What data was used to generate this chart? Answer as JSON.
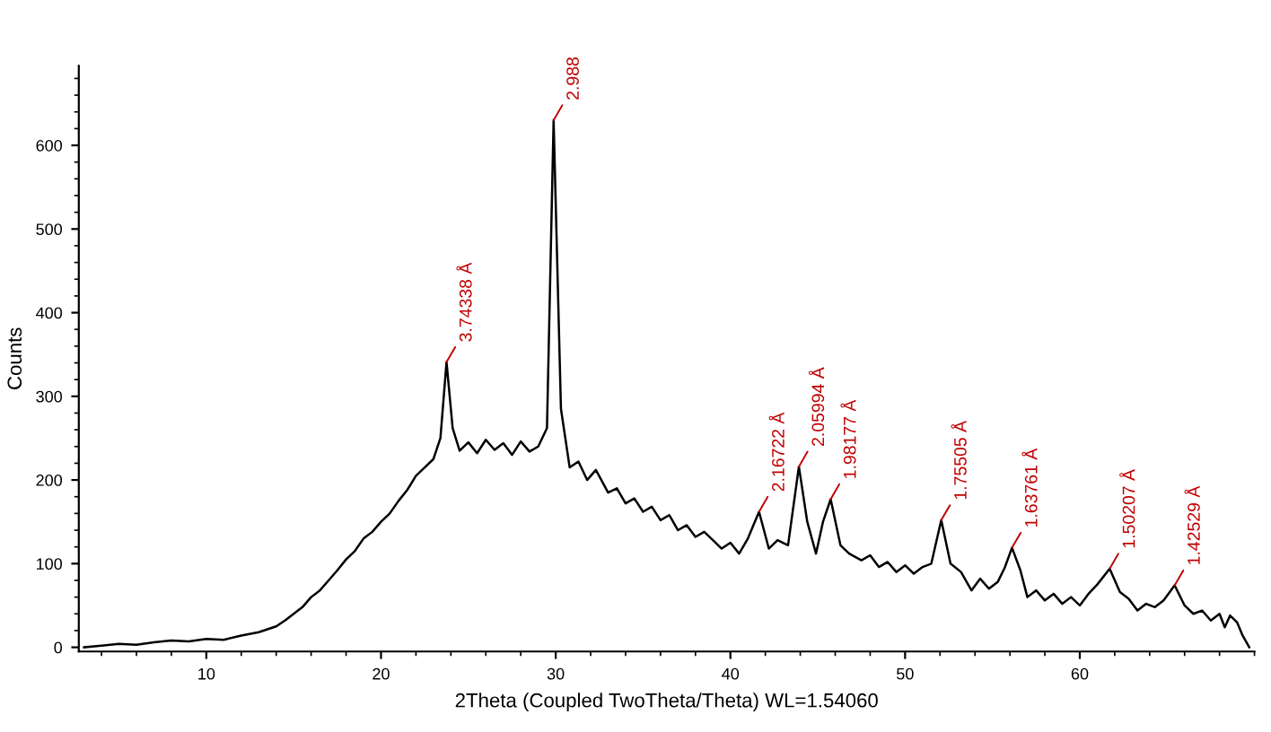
{
  "chart_data": {
    "type": "line",
    "xlabel": "2Theta (Coupled TwoTheta/Theta) WL=1.54060",
    "ylabel": "Counts",
    "xlim": [
      2.7,
      70
    ],
    "ylim": [
      -5,
      695
    ],
    "xticks": [
      10,
      20,
      30,
      40,
      50,
      60
    ],
    "yticks": [
      0,
      100,
      200,
      300,
      400,
      500,
      600
    ],
    "series": [
      {
        "color": "#000000",
        "x": [
          3,
          4,
          5,
          6,
          7,
          8,
          9,
          10,
          11,
          12,
          13,
          14,
          14.5,
          15,
          15.5,
          16,
          16.5,
          17,
          17.5,
          18,
          18.5,
          19,
          19.5,
          20,
          20.5,
          21,
          21.5,
          22,
          22.5,
          23,
          23.4,
          23.75,
          24.1,
          24.5,
          25,
          25.5,
          26,
          26.5,
          27,
          27.5,
          28,
          28.5,
          29,
          29.5,
          29.88,
          30.3,
          30.8,
          31.3,
          31.8,
          32.3,
          33,
          33.5,
          34,
          34.5,
          35,
          35.5,
          36,
          36.5,
          37,
          37.5,
          38,
          38.5,
          39,
          39.5,
          40,
          40.5,
          41,
          41.64,
          42.2,
          42.7,
          43.3,
          43.92,
          44.4,
          44.9,
          45.3,
          45.74,
          46.3,
          46.8,
          47.5,
          48,
          48.5,
          49,
          49.5,
          50,
          50.5,
          51,
          51.5,
          52.07,
          52.6,
          53.2,
          53.8,
          54.3,
          54.8,
          55.3,
          55.7,
          56.12,
          56.6,
          57,
          57.5,
          58,
          58.5,
          59,
          59.5,
          60,
          60.5,
          61,
          61.71,
          62.3,
          62.8,
          63.3,
          63.8,
          64.3,
          64.8,
          65.43,
          66,
          66.5,
          67,
          67.5,
          68,
          68.3,
          68.6,
          69,
          69.3,
          69.7
        ],
        "values": [
          0,
          2,
          4,
          3,
          6,
          8,
          7,
          10,
          9,
          14,
          18,
          25,
          32,
          40,
          48,
          60,
          68,
          80,
          92,
          105,
          115,
          130,
          138,
          150,
          160,
          175,
          188,
          205,
          215,
          225,
          250,
          341,
          262,
          235,
          245,
          232,
          248,
          236,
          244,
          230,
          246,
          234,
          240,
          262,
          630,
          285,
          215,
          222,
          200,
          212,
          185,
          190,
          172,
          178,
          162,
          168,
          152,
          158,
          140,
          146,
          132,
          138,
          128,
          118,
          125,
          112,
          130,
          162,
          118,
          128,
          122,
          216,
          150,
          112,
          150,
          177,
          122,
          112,
          104,
          110,
          96,
          102,
          90,
          98,
          88,
          96,
          100,
          152,
          100,
          90,
          68,
          82,
          70,
          78,
          95,
          119,
          92,
          60,
          68,
          56,
          64,
          52,
          60,
          50,
          64,
          75,
          94,
          66,
          58,
          44,
          52,
          48,
          56,
          74,
          50,
          40,
          44,
          32,
          40,
          24,
          38,
          30,
          15,
          0
        ]
      }
    ],
    "annotations": [
      {
        "text": "3.74338 Å",
        "x": 23.75,
        "y": 341
      },
      {
        "text": "2.988",
        "x": 29.88,
        "y": 630
      },
      {
        "text": "2.16722 Å",
        "x": 41.64,
        "y": 162
      },
      {
        "text": "2.05994 Å",
        "x": 43.92,
        "y": 216
      },
      {
        "text": "1.98177 Å",
        "x": 45.74,
        "y": 177
      },
      {
        "text": "1.75505 Å",
        "x": 52.07,
        "y": 152
      },
      {
        "text": "1.63761 Å",
        "x": 56.12,
        "y": 119
      },
      {
        "text": "1.50207 Å",
        "x": 61.71,
        "y": 94
      },
      {
        "text": "1.42529 Å",
        "x": 65.43,
        "y": 74
      }
    ]
  }
}
